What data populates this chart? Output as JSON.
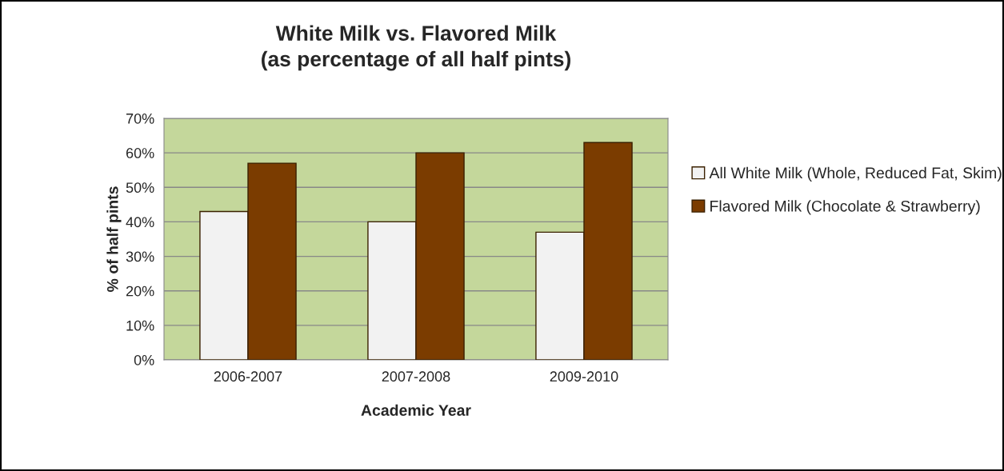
{
  "chart_data": {
    "type": "bar",
    "title": "White Milk vs. Flavored Milk\n(as percentage of all half pints)",
    "xlabel": "Academic Year",
    "ylabel": "% of half pints",
    "categories": [
      "2006-2007",
      "2007-2008",
      "2009-2010"
    ],
    "series": [
      {
        "name": "All White Milk (Whole, Reduced Fat, Skim)",
        "color": "#f2f2f2",
        "values": [
          43,
          40,
          37
        ]
      },
      {
        "name": "Flavored Milk (Chocolate & Strawberry)",
        "color": "#7b3c00",
        "values": [
          57,
          60,
          63
        ]
      }
    ],
    "ylim": [
      0,
      70
    ],
    "yticks": [
      {
        "value": 0,
        "label": "0%"
      },
      {
        "value": 10,
        "label": "10%"
      },
      {
        "value": 20,
        "label": "20%"
      },
      {
        "value": 30,
        "label": "30%"
      },
      {
        "value": 40,
        "label": "40%"
      },
      {
        "value": 50,
        "label": "50%"
      },
      {
        "value": 60,
        "label": "60%"
      },
      {
        "value": 70,
        "label": "70%"
      }
    ],
    "grid": "y",
    "legend": "right"
  }
}
